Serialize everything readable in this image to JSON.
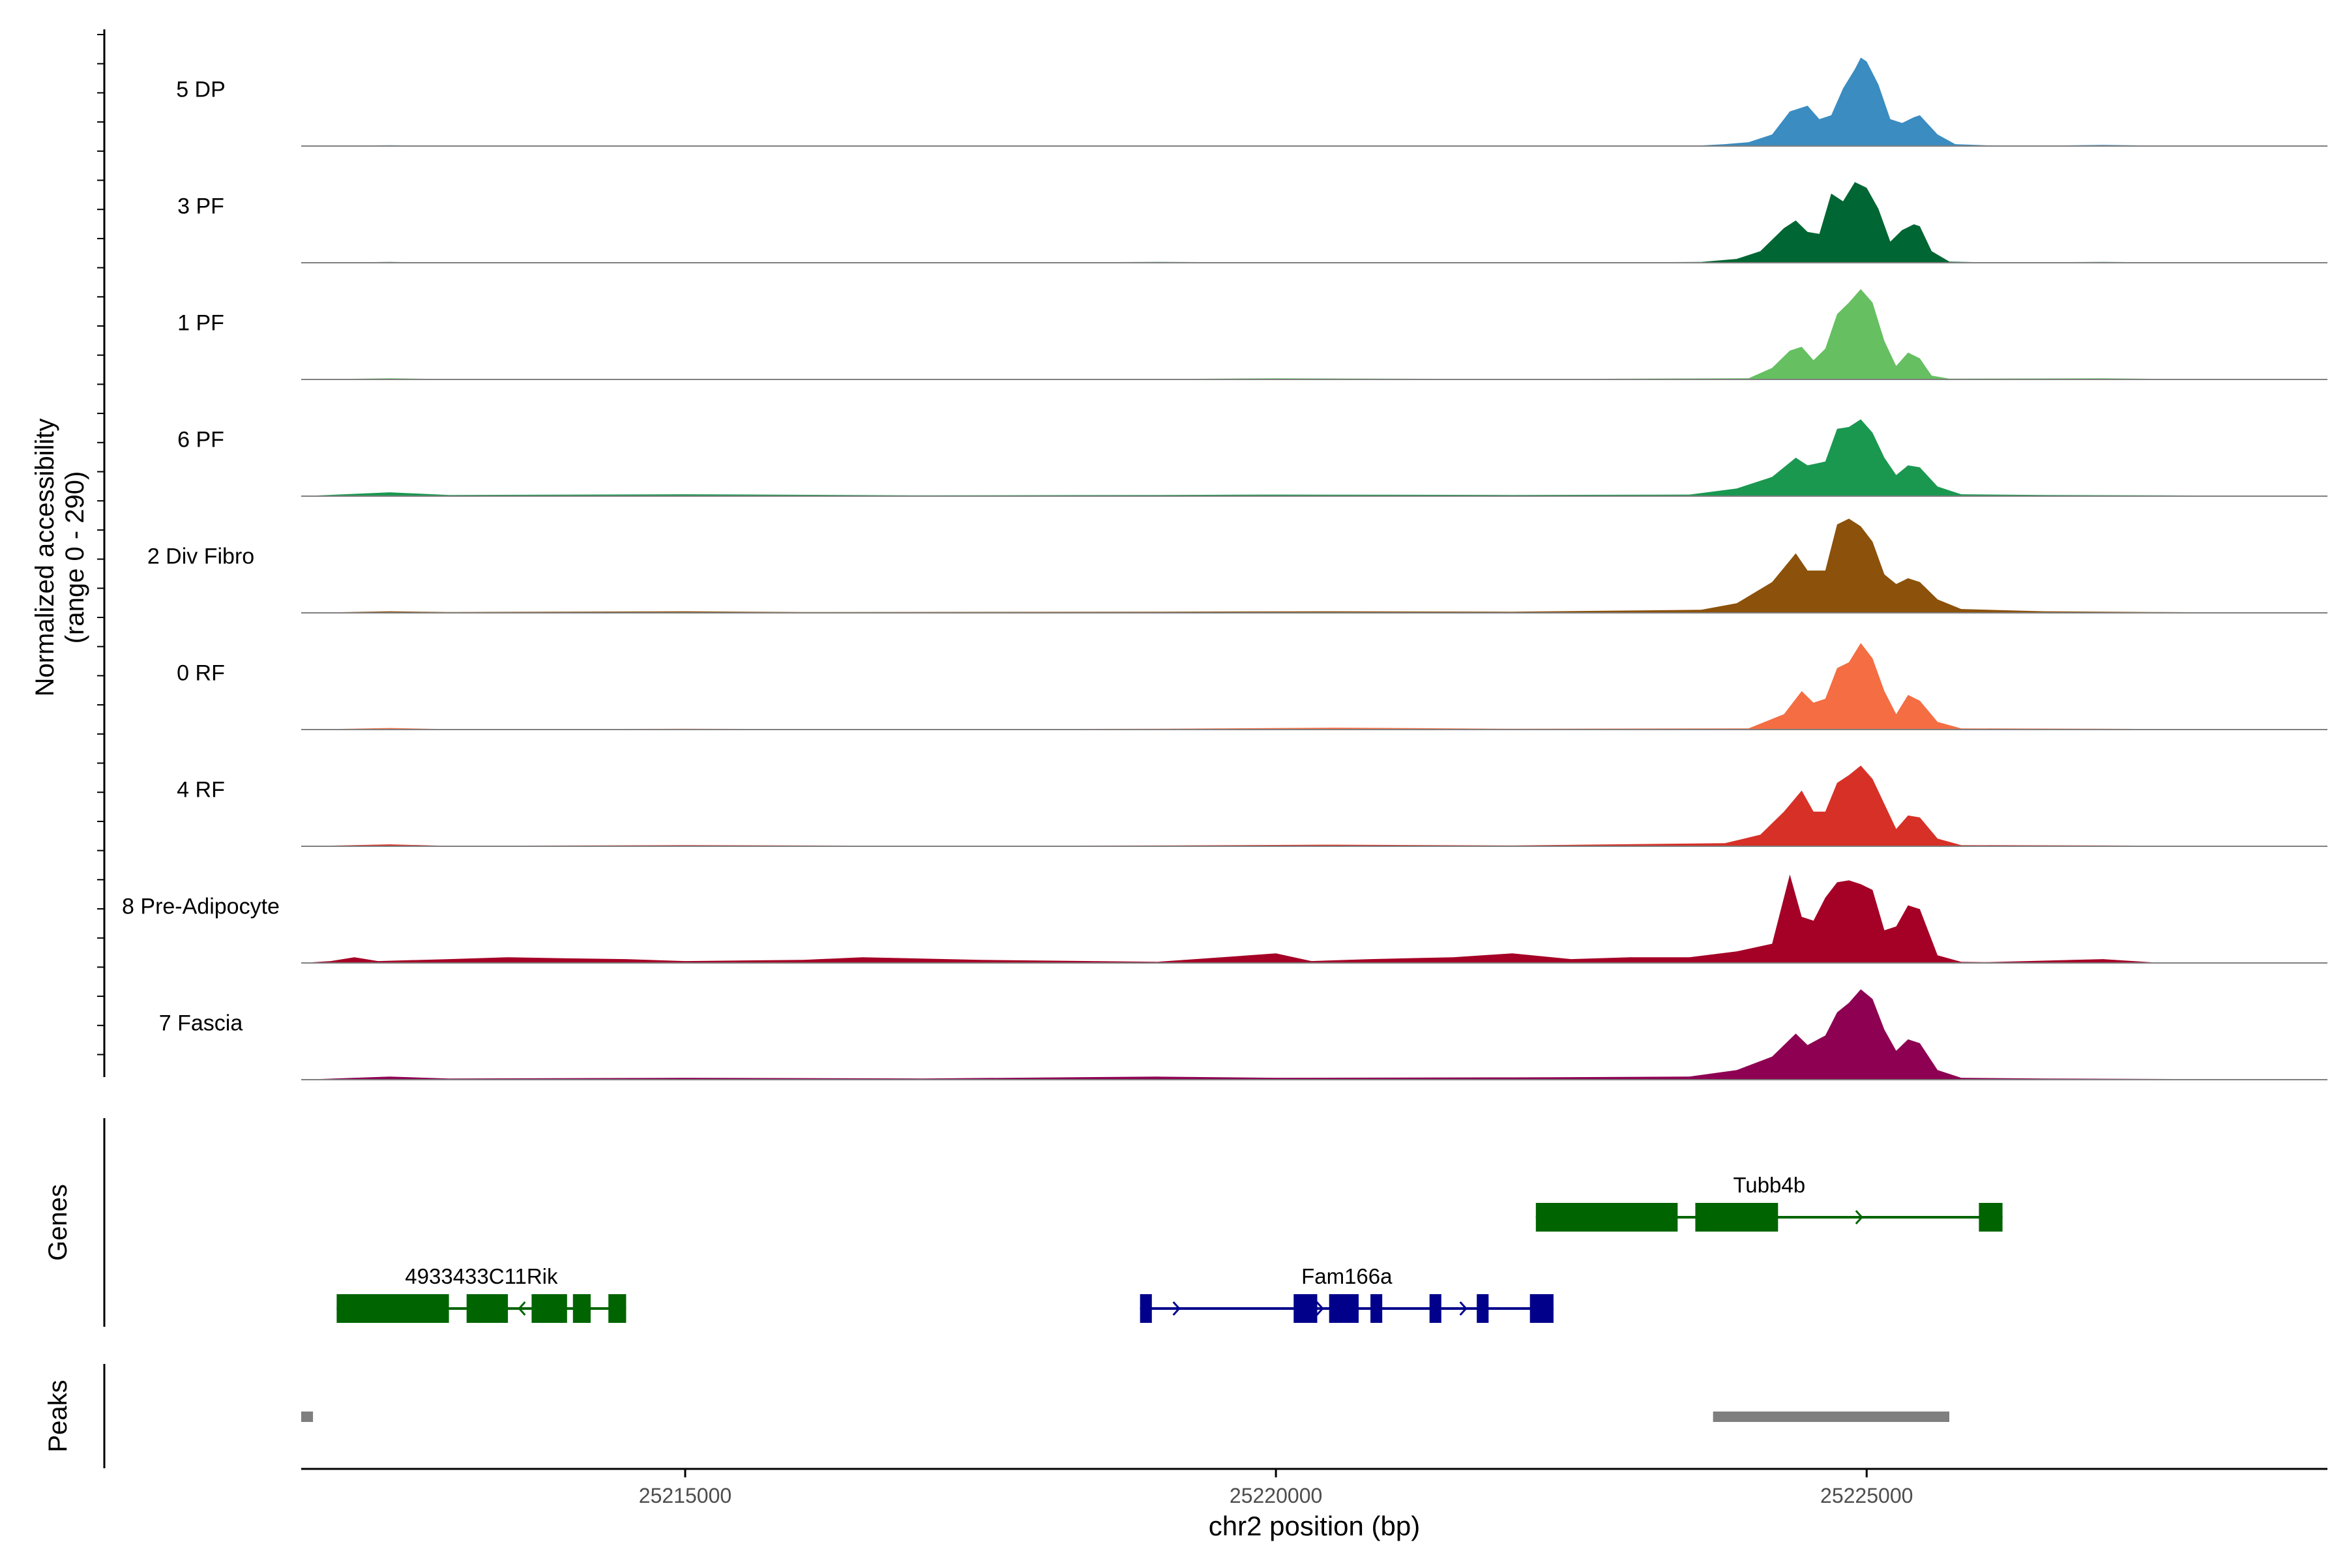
{
  "chart_data": {
    "type": "area",
    "title": "",
    "ylabel_lines": [
      "Normalized accessibility",
      "(range 0 - 290)"
    ],
    "y_range": [
      0,
      290
    ],
    "xlabel": "chr2 position (bp)",
    "x_range": [
      25211750,
      25228900
    ],
    "x_ticks": [
      25215000,
      25220000,
      25225000
    ],
    "x_tick_labels": [
      "25215000",
      "25220000",
      "25225000"
    ],
    "tracks": [
      {
        "name": "5 DP",
        "color": "#3A8CC1",
        "points": [
          [
            25211750,
            0
          ],
          [
            25212500,
            2
          ],
          [
            25213000,
            0
          ],
          [
            25214500,
            1
          ],
          [
            25216000,
            0
          ],
          [
            25218000,
            1
          ],
          [
            25219000,
            0
          ],
          [
            25220000,
            1
          ],
          [
            25221000,
            0
          ],
          [
            25222000,
            1
          ],
          [
            25223500,
            0
          ],
          [
            25223800,
            5
          ],
          [
            25224000,
            10
          ],
          [
            25224200,
            30
          ],
          [
            25224350,
            90
          ],
          [
            25224500,
            105
          ],
          [
            25224600,
            70
          ],
          [
            25224700,
            80
          ],
          [
            25224800,
            150
          ],
          [
            25224900,
            200
          ],
          [
            25224950,
            230
          ],
          [
            25225000,
            220
          ],
          [
            25225100,
            160
          ],
          [
            25225200,
            70
          ],
          [
            25225300,
            60
          ],
          [
            25225400,
            75
          ],
          [
            25225450,
            80
          ],
          [
            25225600,
            30
          ],
          [
            25225750,
            5
          ],
          [
            25226000,
            2
          ],
          [
            25226500,
            1
          ],
          [
            25227000,
            3
          ],
          [
            25227500,
            1
          ],
          [
            25228000,
            0
          ],
          [
            25228900,
            0
          ]
        ]
      },
      {
        "name": "3 PF",
        "color": "#006633",
        "points": [
          [
            25211750,
            0
          ],
          [
            25212500,
            2
          ],
          [
            25213000,
            0
          ],
          [
            25215000,
            1
          ],
          [
            25217000,
            0
          ],
          [
            25219000,
            2
          ],
          [
            25220000,
            1
          ],
          [
            25222000,
            0
          ],
          [
            25223600,
            2
          ],
          [
            25223900,
            10
          ],
          [
            25224100,
            30
          ],
          [
            25224300,
            90
          ],
          [
            25224400,
            110
          ],
          [
            25224500,
            80
          ],
          [
            25224600,
            75
          ],
          [
            25224700,
            180
          ],
          [
            25224800,
            160
          ],
          [
            25224900,
            210
          ],
          [
            25225000,
            195
          ],
          [
            25225100,
            140
          ],
          [
            25225200,
            55
          ],
          [
            25225300,
            85
          ],
          [
            25225400,
            100
          ],
          [
            25225450,
            95
          ],
          [
            25225550,
            30
          ],
          [
            25225700,
            3
          ],
          [
            25226000,
            1
          ],
          [
            25227000,
            2
          ],
          [
            25228000,
            0
          ],
          [
            25228900,
            0
          ]
        ]
      },
      {
        "name": "1 PF",
        "color": "#66BF61",
        "points": [
          [
            25211750,
            0
          ],
          [
            25212500,
            3
          ],
          [
            25213000,
            1
          ],
          [
            25215000,
            1
          ],
          [
            25217000,
            0
          ],
          [
            25219000,
            1
          ],
          [
            25220000,
            3
          ],
          [
            25222000,
            1
          ],
          [
            25224000,
            3
          ],
          [
            25224200,
            30
          ],
          [
            25224350,
            75
          ],
          [
            25224450,
            85
          ],
          [
            25224550,
            50
          ],
          [
            25224650,
            80
          ],
          [
            25224750,
            170
          ],
          [
            25224850,
            200
          ],
          [
            25224950,
            235
          ],
          [
            25225050,
            200
          ],
          [
            25225150,
            100
          ],
          [
            25225250,
            35
          ],
          [
            25225350,
            70
          ],
          [
            25225450,
            55
          ],
          [
            25225550,
            10
          ],
          [
            25225700,
            2
          ],
          [
            25227000,
            3
          ],
          [
            25228000,
            0
          ],
          [
            25228900,
            0
          ]
        ]
      },
      {
        "name": "6 PF",
        "color": "#1A9850",
        "points": [
          [
            25211750,
            0
          ],
          [
            25212500,
            10
          ],
          [
            25213000,
            3
          ],
          [
            25215000,
            5
          ],
          [
            25217000,
            2
          ],
          [
            25219000,
            3
          ],
          [
            25220000,
            4
          ],
          [
            25222000,
            3
          ],
          [
            25223500,
            4
          ],
          [
            25223900,
            20
          ],
          [
            25224200,
            50
          ],
          [
            25224400,
            100
          ],
          [
            25224500,
            80
          ],
          [
            25224650,
            90
          ],
          [
            25224750,
            175
          ],
          [
            25224850,
            180
          ],
          [
            25224950,
            200
          ],
          [
            25225050,
            165
          ],
          [
            25225150,
            100
          ],
          [
            25225250,
            55
          ],
          [
            25225350,
            80
          ],
          [
            25225450,
            75
          ],
          [
            25225600,
            25
          ],
          [
            25225800,
            5
          ],
          [
            25226500,
            3
          ],
          [
            25227500,
            2
          ],
          [
            25228900,
            0
          ]
        ]
      },
      {
        "name": "2 Div Fibro",
        "color": "#8C510A",
        "points": [
          [
            25211750,
            0
          ],
          [
            25212500,
            4
          ],
          [
            25213000,
            2
          ],
          [
            25215000,
            4
          ],
          [
            25216000,
            2
          ],
          [
            25219000,
            3
          ],
          [
            25220500,
            4
          ],
          [
            25222000,
            3
          ],
          [
            25223600,
            8
          ],
          [
            25223900,
            25
          ],
          [
            25224200,
            80
          ],
          [
            25224400,
            155
          ],
          [
            25224500,
            110
          ],
          [
            25224650,
            110
          ],
          [
            25224750,
            230
          ],
          [
            25224850,
            245
          ],
          [
            25224950,
            225
          ],
          [
            25225050,
            185
          ],
          [
            25225150,
            100
          ],
          [
            25225250,
            75
          ],
          [
            25225350,
            90
          ],
          [
            25225450,
            80
          ],
          [
            25225600,
            35
          ],
          [
            25225800,
            10
          ],
          [
            25226500,
            4
          ],
          [
            25227500,
            2
          ],
          [
            25228900,
            0
          ]
        ]
      },
      {
        "name": "0 RF",
        "color": "#F46D43",
        "points": [
          [
            25211750,
            0
          ],
          [
            25212500,
            4
          ],
          [
            25213000,
            1
          ],
          [
            25215000,
            2
          ],
          [
            25217000,
            1
          ],
          [
            25219000,
            2
          ],
          [
            25220500,
            5
          ],
          [
            25222000,
            2
          ],
          [
            25224000,
            3
          ],
          [
            25224300,
            40
          ],
          [
            25224450,
            100
          ],
          [
            25224550,
            70
          ],
          [
            25224650,
            80
          ],
          [
            25224750,
            160
          ],
          [
            25224850,
            175
          ],
          [
            25224950,
            225
          ],
          [
            25225050,
            185
          ],
          [
            25225150,
            100
          ],
          [
            25225250,
            40
          ],
          [
            25225350,
            90
          ],
          [
            25225450,
            75
          ],
          [
            25225600,
            20
          ],
          [
            25225800,
            3
          ],
          [
            25227000,
            2
          ],
          [
            25228900,
            0
          ]
        ]
      },
      {
        "name": "4 RF",
        "color": "#D73027",
        "points": [
          [
            25211750,
            0
          ],
          [
            25212500,
            5
          ],
          [
            25213000,
            1
          ],
          [
            25215000,
            3
          ],
          [
            25217000,
            1
          ],
          [
            25219000,
            2
          ],
          [
            25220500,
            4
          ],
          [
            25222000,
            2
          ],
          [
            25223800,
            8
          ],
          [
            25224100,
            30
          ],
          [
            25224300,
            90
          ],
          [
            25224450,
            145
          ],
          [
            25224550,
            90
          ],
          [
            25224650,
            90
          ],
          [
            25224750,
            165
          ],
          [
            25224850,
            185
          ],
          [
            25224950,
            210
          ],
          [
            25225050,
            175
          ],
          [
            25225150,
            110
          ],
          [
            25225250,
            45
          ],
          [
            25225350,
            80
          ],
          [
            25225450,
            75
          ],
          [
            25225600,
            20
          ],
          [
            25225800,
            3
          ],
          [
            25227000,
            2
          ],
          [
            25228900,
            0
          ]
        ]
      },
      {
        "name": "8 Pre-Adipocyte",
        "color": "#A50026",
        "points": [
          [
            25211750,
            0
          ],
          [
            25212000,
            5
          ],
          [
            25212200,
            15
          ],
          [
            25212400,
            5
          ],
          [
            25213000,
            10
          ],
          [
            25213500,
            15
          ],
          [
            25214000,
            12
          ],
          [
            25214500,
            10
          ],
          [
            25215000,
            5
          ],
          [
            25216000,
            8
          ],
          [
            25216500,
            15
          ],
          [
            25217500,
            8
          ],
          [
            25219000,
            3
          ],
          [
            25220000,
            25
          ],
          [
            25220300,
            5
          ],
          [
            25220800,
            10
          ],
          [
            25221500,
            15
          ],
          [
            25222000,
            25
          ],
          [
            25222500,
            10
          ],
          [
            25223000,
            15
          ],
          [
            25223500,
            15
          ],
          [
            25223900,
            30
          ],
          [
            25224200,
            50
          ],
          [
            25224350,
            230
          ],
          [
            25224450,
            120
          ],
          [
            25224550,
            110
          ],
          [
            25224650,
            170
          ],
          [
            25224750,
            210
          ],
          [
            25224850,
            215
          ],
          [
            25224950,
            205
          ],
          [
            25225050,
            190
          ],
          [
            25225150,
            85
          ],
          [
            25225250,
            95
          ],
          [
            25225350,
            150
          ],
          [
            25225450,
            140
          ],
          [
            25225600,
            20
          ],
          [
            25225800,
            3
          ],
          [
            25226000,
            2
          ],
          [
            25227000,
            10
          ],
          [
            25227500,
            0
          ],
          [
            25228900,
            0
          ]
        ]
      },
      {
        "name": "7 Fascia",
        "color": "#8E0152",
        "points": [
          [
            25211750,
            0
          ],
          [
            25212500,
            8
          ],
          [
            25213000,
            3
          ],
          [
            25215000,
            5
          ],
          [
            25217000,
            3
          ],
          [
            25219000,
            8
          ],
          [
            25220000,
            5
          ],
          [
            25222000,
            6
          ],
          [
            25223500,
            8
          ],
          [
            25223900,
            25
          ],
          [
            25224200,
            60
          ],
          [
            25224400,
            120
          ],
          [
            25224500,
            90
          ],
          [
            25224650,
            115
          ],
          [
            25224750,
            175
          ],
          [
            25224850,
            200
          ],
          [
            25224950,
            235
          ],
          [
            25225050,
            210
          ],
          [
            25225150,
            130
          ],
          [
            25225250,
            75
          ],
          [
            25225350,
            105
          ],
          [
            25225450,
            95
          ],
          [
            25225600,
            25
          ],
          [
            25225800,
            5
          ],
          [
            25226500,
            3
          ],
          [
            25228900,
            0
          ]
        ]
      }
    ],
    "genes_label": "Genes",
    "genes": [
      {
        "name": "Tubb4b",
        "strand": "+",
        "color": "#006400",
        "row": 0,
        "start": 25222200,
        "end": 25226150,
        "exons": [
          [
            25222200,
            25223400
          ],
          [
            25223550,
            25224250
          ],
          [
            25225950,
            25226150
          ]
        ]
      },
      {
        "name": "4933433C11Rik",
        "strand": "-",
        "color": "#006400",
        "row": 1,
        "start": 25212050,
        "end": 25214500,
        "exons": [
          [
            25212050,
            25213000
          ],
          [
            25213150,
            25213500
          ],
          [
            25213700,
            25214000
          ],
          [
            25214050,
            25214200
          ],
          [
            25214350,
            25214500
          ]
        ]
      },
      {
        "name": "Fam166a",
        "strand": "+",
        "color": "#00008B",
        "row": 1,
        "start": 25218850,
        "end": 25222350,
        "exons": [
          [
            25218850,
            25218950
          ],
          [
            25220150,
            25220350
          ],
          [
            25220450,
            25220700
          ],
          [
            25220800,
            25220900
          ],
          [
            25221300,
            25221400
          ],
          [
            25221700,
            25221800
          ],
          [
            25222150,
            25222350
          ]
        ]
      }
    ],
    "peaks_label": "Peaks",
    "peaks": [
      [
        25211750,
        25211850
      ],
      [
        25223700,
        25225700
      ]
    ],
    "colors": {
      "axis": "#000000",
      "baseline": "#7f7f7f",
      "peak": "#7f7f7f"
    }
  }
}
